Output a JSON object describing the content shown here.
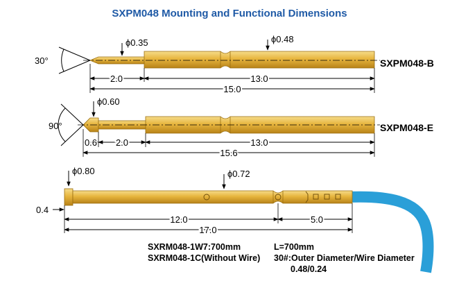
{
  "title": "SXPM048 Mounting and Functional Dimensions",
  "colors": {
    "title": "#1f5aa6",
    "gold": "#e3b23c",
    "gold_dark": "#b8861c",
    "gold_light": "#f3d57a",
    "wire": "#2a9fd8",
    "line": "#000000"
  },
  "probe_b": {
    "model": "SXPM048-B",
    "angle": "30°",
    "tip_diameter": "ϕ0.35",
    "barrel_diameter": "ϕ0.48",
    "dim_tip": "2.0",
    "dim_body": "13.0",
    "dim_total": "15.0"
  },
  "probe_e": {
    "model": "SXPM048-E",
    "angle": "90°",
    "head_diameter": "ϕ0.60",
    "dim_head": "0.6",
    "dim_tip": "2.0",
    "dim_body": "13.0",
    "dim_total": "15.6"
  },
  "probe_w": {
    "head_diameter": "ϕ0.80",
    "body_diameter": "ϕ0.72",
    "dim_head": "0.4",
    "dim_body": "12.0",
    "dim_end": "5.0",
    "dim_total": "17.0"
  },
  "notes": {
    "line1_left": "SXRM048-1W7:700mm",
    "line1_right": "L=700mm",
    "line2_left": "SXRM048-1C(Without Wire)",
    "line2_right": "30#:Outer Diameter/Wire Diameter",
    "line3_right": "0.48/0.24"
  }
}
